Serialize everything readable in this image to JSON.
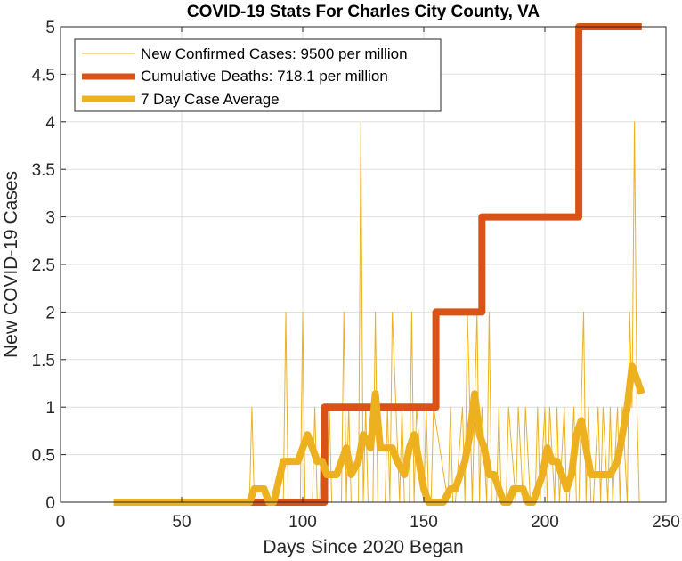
{
  "chart_data": {
    "type": "line",
    "title": "COVID-19 Stats For Charles City County, VA",
    "xlabel": "Days Since 2020 Began",
    "ylabel": "New COVID-19 Cases",
    "xlim": [
      0,
      250
    ],
    "ylim": [
      0,
      5
    ],
    "xticks": [
      0,
      50,
      100,
      150,
      200,
      250
    ],
    "yticks": [
      0,
      0.5,
      1,
      1.5,
      2,
      2.5,
      3,
      3.5,
      4,
      4.5,
      5
    ],
    "xtick_labels": [
      "0",
      "50",
      "100",
      "150",
      "200",
      "250"
    ],
    "ytick_labels": [
      "0",
      "0.5",
      "1",
      "1.5",
      "2",
      "2.5",
      "3",
      "3.5",
      "4",
      "4.5",
      "5"
    ],
    "grid": true,
    "legend_position": "top-left",
    "series": [
      {
        "name": "New Confirmed Cases: 9500 per million",
        "color": "#EDB120",
        "x": [
          22,
          78,
          79,
          80,
          81,
          92,
          93,
          94,
          99,
          100,
          101,
          104,
          105,
          106,
          107,
          108,
          109,
          110,
          111,
          112,
          113,
          116,
          117,
          118,
          119,
          120,
          123,
          124,
          125,
          126,
          127,
          129,
          130,
          131,
          134,
          135,
          136,
          137,
          140,
          141,
          142,
          144,
          145,
          146,
          147,
          150,
          151,
          152,
          153,
          154,
          160,
          161,
          162,
          163,
          166,
          167,
          168,
          170,
          171,
          172,
          173,
          174,
          176,
          177,
          178,
          180,
          181,
          182,
          184,
          185,
          188,
          189,
          191,
          192,
          194,
          196,
          197,
          198,
          200,
          201,
          202,
          204,
          205,
          206,
          208,
          209,
          210,
          212,
          213,
          214,
          216,
          217,
          218,
          219,
          220,
          222,
          223,
          224,
          226,
          227,
          228,
          230,
          231,
          232,
          234,
          235,
          236,
          237,
          238,
          239
        ],
        "y": [
          0,
          0,
          1,
          0,
          0,
          0,
          2,
          0,
          0,
          2,
          0,
          0,
          1,
          0,
          0,
          1,
          0,
          0,
          1,
          0,
          0,
          0,
          2,
          0,
          1,
          0,
          0,
          4,
          0,
          1,
          0,
          0,
          2,
          0,
          0,
          1,
          0,
          2,
          0,
          1,
          0,
          0,
          2,
          0,
          1,
          0,
          1,
          0,
          0,
          1,
          0,
          1,
          0,
          0,
          1,
          0,
          2,
          0,
          1,
          2,
          0,
          1,
          0,
          2,
          0,
          0,
          1,
          0,
          0,
          1,
          0,
          1,
          0,
          1,
          0,
          0,
          1,
          0,
          1,
          0,
          1,
          0,
          1,
          0,
          1,
          0,
          0,
          1,
          0,
          0,
          2,
          0,
          1,
          0,
          0,
          1,
          0,
          1,
          0,
          1,
          0,
          1,
          0,
          1,
          0,
          2,
          1,
          4,
          1,
          0
        ]
      },
      {
        "name": "Cumulative Deaths: 718.1 per million",
        "color": "#D95319",
        "x": [
          22,
          109,
          109,
          155,
          155,
          174,
          174,
          214,
          214,
          240
        ],
        "y": [
          0,
          0,
          1,
          1,
          2,
          2,
          3,
          3,
          5,
          5
        ]
      },
      {
        "name": "7 Day Case Average",
        "color": "#EDB120",
        "x": [
          22,
          78,
          80,
          82,
          84,
          86,
          88,
          92,
          93,
          95,
          98,
          100,
          102,
          104,
          106,
          108,
          110,
          112,
          114,
          118,
          120,
          123,
          125,
          128,
          130,
          132,
          134,
          137,
          139,
          142,
          144,
          146,
          148,
          150,
          152,
          154,
          158,
          161,
          163,
          165,
          167,
          169,
          171,
          173,
          175,
          177,
          179,
          181,
          183,
          185,
          187,
          189,
          191,
          193,
          195,
          197,
          199,
          201,
          203,
          205,
          207,
          209,
          211,
          213,
          215,
          217,
          219,
          221,
          223,
          227,
          230,
          232,
          234,
          236,
          238,
          240
        ],
        "y": [
          0,
          0,
          0.14,
          0.14,
          0.14,
          0,
          0,
          0.43,
          0.43,
          0.43,
          0.43,
          0.57,
          0.71,
          0.57,
          0.43,
          0.43,
          0.29,
          0.29,
          0.29,
          0.57,
          0.29,
          0.43,
          0.71,
          0.57,
          1.14,
          0.57,
          0.57,
          0.57,
          0.43,
          0.29,
          0.57,
          0.71,
          0.43,
          0.14,
          0,
          0,
          0,
          0.14,
          0.14,
          0.29,
          0.43,
          0.71,
          1.14,
          0.71,
          0.57,
          0.29,
          0.29,
          0.14,
          0,
          0,
          0.14,
          0.14,
          0.14,
          0,
          0,
          0.14,
          0.29,
          0.57,
          0.43,
          0.43,
          0.29,
          0.14,
          0.29,
          0.71,
          0.86,
          0.57,
          0.29,
          0.29,
          0.29,
          0.29,
          0.43,
          0.71,
          1,
          1.43,
          1.29,
          1.14
        ]
      }
    ]
  }
}
